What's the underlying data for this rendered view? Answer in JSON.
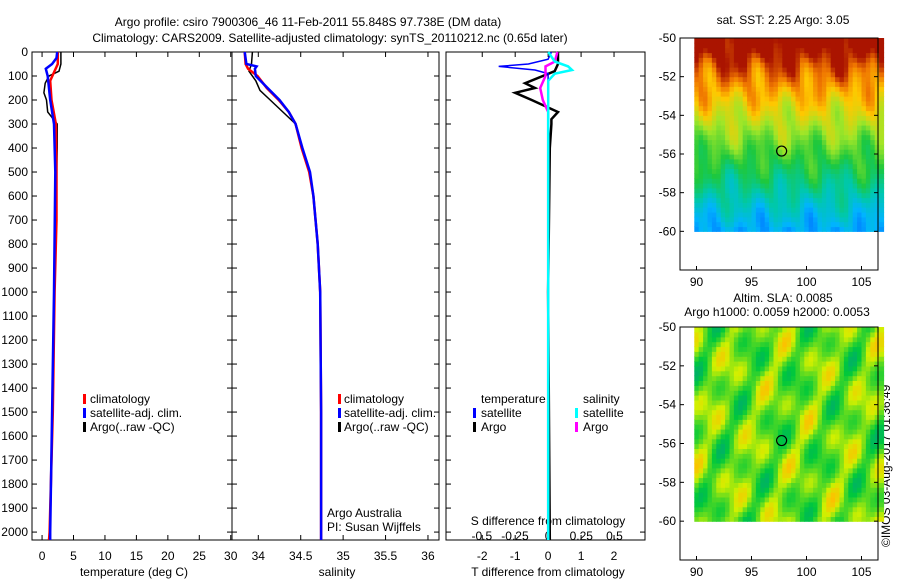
{
  "title": {
    "line1": "Argo profile: csiro 7900306_46 11-Feb-2011 55.848S 97.738E (DM data)",
    "line2": "Climatology: CARS2009. Satellite-adjusted climatology: synTS_20110212.nc (0.65d later)"
  },
  "colors": {
    "climatology": "#ff0000",
    "satellite": "#0000ff",
    "argo": "#000000",
    "sal_satellite": "#00ffff",
    "sal_argo": "#ff00ff"
  },
  "chart_data": [
    {
      "type": "line",
      "name": "temperature-profile",
      "xlabel": "temperature (deg C)",
      "ylabel": "depth",
      "xlim": [
        -1.6,
        30.2
      ],
      "ylim": [
        0,
        2033
      ],
      "xticks": [
        0,
        5,
        10,
        15,
        20,
        25,
        30
      ],
      "yticks": [
        0,
        100,
        200,
        300,
        400,
        500,
        600,
        700,
        800,
        900,
        1000,
        1100,
        1200,
        1300,
        1400,
        1500,
        1600,
        1700,
        1800,
        1900,
        2000
      ],
      "legend": [
        "climatology",
        "satellite-adj. clim.",
        "Argo(..raw -QC)"
      ],
      "series": [
        {
          "name": "climatology",
          "depth": [
            0,
            50,
            90,
            120,
            200,
            300,
            500,
            700,
            1000,
            1500,
            2000,
            2033
          ],
          "values": [
            2.5,
            2.5,
            1.8,
            1.3,
            1.5,
            2.2,
            2.3,
            2.3,
            2.0,
            1.7,
            1.2,
            1.1
          ]
        },
        {
          "name": "satellite-adj. clim.",
          "depth": [
            0,
            25,
            50,
            70,
            100,
            200,
            300,
            500,
            1000,
            1500,
            2000,
            2033
          ],
          "values": [
            2.4,
            2.3,
            1.6,
            0.6,
            0.9,
            1.3,
            1.9,
            2.1,
            1.9,
            1.6,
            1.3,
            1.3
          ]
        },
        {
          "name": "Argo(..raw -QC)",
          "depth": [
            0,
            50,
            80,
            100,
            130,
            170,
            200,
            250,
            300,
            400,
            700,
            1000,
            1500,
            2000,
            2030
          ],
          "values": [
            3.0,
            3.0,
            2.7,
            1.1,
            0.5,
            0.3,
            0.7,
            0.9,
            2.4,
            2.4,
            2.2,
            2.0,
            1.6,
            1.3,
            1.3
          ]
        }
      ]
    },
    {
      "type": "line",
      "name": "salinity-profile",
      "xlabel": "salinity",
      "xlim": [
        33.69,
        36.13
      ],
      "ylim": [
        0,
        2033
      ],
      "xticks": [
        34,
        34.5,
        35,
        35.5,
        36
      ],
      "legend": [
        "climatology",
        "satellite-adj. clim.",
        "Argo(..raw -QC)"
      ],
      "annotation": [
        "Argo Australia",
        "PI: Susan Wijffels"
      ],
      "series": [
        {
          "name": "climatology",
          "depth": [
            0,
            50,
            70,
            100,
            150,
            200,
            250,
            300,
            400,
            500,
            600,
            800,
            1000,
            1500,
            2000,
            2033
          ],
          "values": [
            33.84,
            33.85,
            33.88,
            33.99,
            34.1,
            34.24,
            34.36,
            34.44,
            34.51,
            34.6,
            34.65,
            34.7,
            34.73,
            34.74,
            34.74,
            34.74
          ]
        },
        {
          "name": "satellite-adj. clim.",
          "depth": [
            0,
            50,
            60,
            70,
            100,
            150,
            200,
            250,
            300,
            400,
            500,
            600,
            800,
            1000,
            1500,
            2000,
            2033
          ],
          "values": [
            33.84,
            33.86,
            33.98,
            33.96,
            33.97,
            34.11,
            34.25,
            34.36,
            34.44,
            34.52,
            34.61,
            34.65,
            34.7,
            34.73,
            34.74,
            34.74,
            34.74
          ]
        },
        {
          "name": "Argo(..raw -QC)",
          "depth": [
            0,
            50,
            80,
            120,
            160,
            200,
            250,
            300,
            400,
            500,
            600,
            800,
            1000,
            1500,
            2000,
            2030
          ],
          "values": [
            33.93,
            33.92,
            33.89,
            33.97,
            34.02,
            34.14,
            34.29,
            34.44,
            34.52,
            34.6,
            34.65,
            34.7,
            34.73,
            34.74,
            34.74,
            34.74
          ]
        }
      ]
    },
    {
      "type": "line",
      "name": "difference-profile",
      "xlabel": "T difference from climatology",
      "x2label": "S difference from climatology",
      "xlim": [
        -3.1,
        2.94
      ],
      "xticks": [
        -2,
        -1,
        0,
        1,
        2
      ],
      "x2lim": [
        -0.77,
        0.73
      ],
      "x2ticks": [
        -0.5,
        -0.25,
        0,
        0.25,
        0.5
      ],
      "x2ticklabels": [
        "-0.5",
        "-0.25",
        "0",
        "0.25",
        "0.5"
      ],
      "ylim": [
        0,
        2033
      ],
      "legend": {
        "temperature": "temperature",
        "salinity": "salinity",
        "items": [
          "satellite",
          "Argo",
          "satellite",
          "Argo"
        ]
      },
      "series": [
        {
          "name": "T satellite",
          "axis": "T",
          "depth": [
            0,
            30,
            50,
            60,
            75,
            90,
            150,
            300,
            2033
          ],
          "values": [
            0.1,
            0,
            -0.6,
            -1.5,
            -0.4,
            0,
            0,
            0,
            0
          ]
        },
        {
          "name": "T Argo",
          "depth": [
            0,
            50,
            80,
            130,
            150,
            170,
            200,
            250,
            280,
            300,
            400,
            1000,
            2033
          ],
          "axis": "T",
          "values": [
            0.3,
            0.3,
            0.2,
            -0.7,
            -0.4,
            -1.0,
            -0.5,
            0.3,
            0.1,
            0.1,
            0.05,
            0,
            0.05
          ]
        },
        {
          "name": "S satellite",
          "axis": "S",
          "depth": [
            0,
            40,
            60,
            75,
            90,
            120,
            200,
            300,
            2033
          ],
          "values": [
            0,
            0.05,
            0.15,
            0.18,
            0.05,
            0,
            0,
            0,
            0
          ]
        },
        {
          "name": "S Argo",
          "axis": "S",
          "depth": [
            0,
            40,
            60,
            100,
            150,
            200,
            250,
            300,
            2033
          ],
          "values": [
            0.07,
            0.05,
            -0.02,
            -0.02,
            -0.06,
            -0.04,
            0,
            0,
            0
          ]
        }
      ]
    },
    {
      "type": "heatmap",
      "name": "sst-map",
      "title": "sat. SST: 2.25 Argo: 3.05",
      "xlim": [
        88.5,
        106.5
      ],
      "ylim": [
        -62,
        -50
      ],
      "xticks": [
        90,
        95,
        100,
        105
      ],
      "yticks": [
        -50,
        -52,
        -54,
        -56,
        -58,
        -60
      ],
      "marker": {
        "lon": 97.738,
        "lat": -55.848
      }
    },
    {
      "type": "heatmap",
      "name": "sla-map",
      "title": "Altim. SLA: 0.0085",
      "subtitle": "Argo h1000: 0.0059 h2000: 0.0053",
      "xlim": [
        88.5,
        106.5
      ],
      "ylim": [
        -62,
        -50
      ],
      "xticks": [
        90,
        95,
        100,
        105
      ],
      "yticks": [
        -50,
        -52,
        -54,
        -56,
        -58,
        -60
      ],
      "marker": {
        "lon": 97.738,
        "lat": -55.848
      },
      "credit": "©IMOS 03-Aug-2017 01:36:49"
    }
  ]
}
